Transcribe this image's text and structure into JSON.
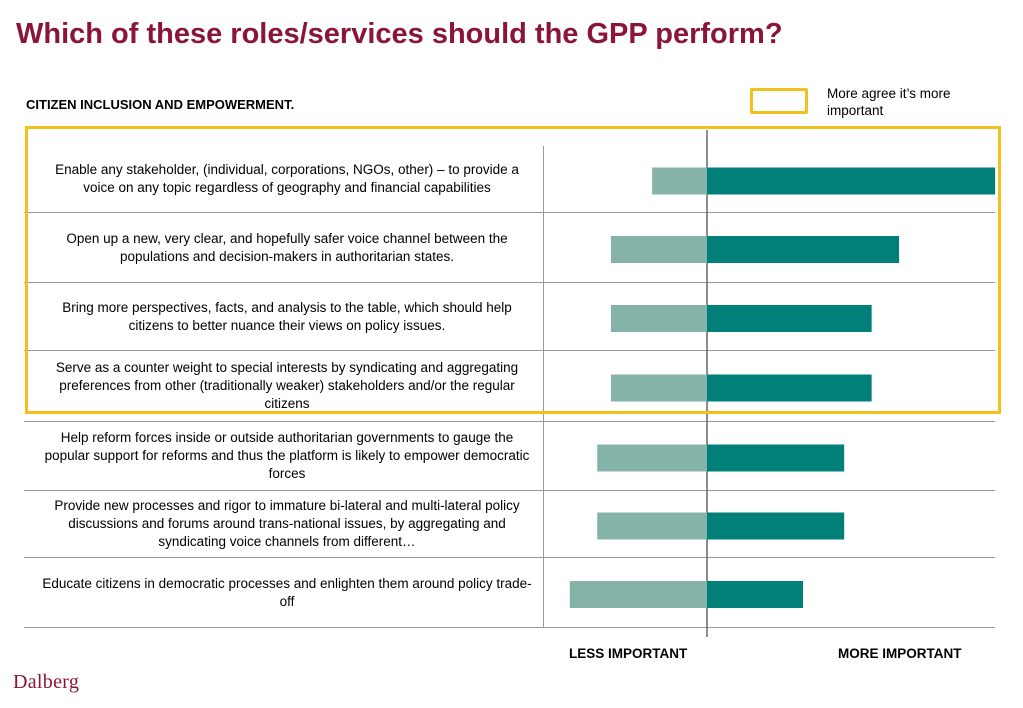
{
  "title": "Which of these roles/services should the GPP perform?",
  "section_title": "CITIZEN INCLUSION AND EMPOWERMENT.",
  "legend": {
    "label": "More agree  it’s more important",
    "color": "#F2C11D"
  },
  "axis": {
    "left_label": "LESS IMPORTANT",
    "right_label": "MORE IMPORTANT"
  },
  "logo": "Dalberg",
  "colors": {
    "less": "#86B3A9",
    "more": "#008078",
    "title": "#8B1538",
    "highlight": "#F2C11D"
  },
  "chart_data": {
    "type": "bar",
    "orientation": "horizontal-diverging",
    "categories": [
      "Enable any stakeholder,  (individual, corporations, NGOs, other) – to provide a voice on any topic regardless of geography and financial capabilities",
      "Open up a new, very clear, and hopefully safer voice channel between the populations and decision-makers in authoritarian states.",
      "Bring more perspectives, facts, and analysis to the table, which should help citizens to better nuance their views on policy issues.",
      "Serve as a counter weight to special interests by syndicating and aggregating preferences from other (traditionally weaker) stakeholders and/or the regular citizens",
      "Help reform forces inside or outside authoritarian governments to gauge the popular support for reforms and thus the platform is likely to empower democratic forces",
      "Provide new processes and rigor to immature bi-lateral and multi-lateral policy discussions and forums around trans-national issues, by aggregating and syndicating voice channels from different…",
      "Educate citizens in democratic processes and enlighten them around policy trade-off"
    ],
    "series": [
      {
        "name": "LESS IMPORTANT",
        "values": [
          8,
          14,
          14,
          14,
          16,
          16,
          20
        ]
      },
      {
        "name": "MORE IMPORTANT",
        "values": [
          42,
          28,
          24,
          24,
          20,
          20,
          14
        ]
      }
    ],
    "highlighted_rows": [
      0,
      1,
      2,
      3
    ],
    "grid": false
  }
}
